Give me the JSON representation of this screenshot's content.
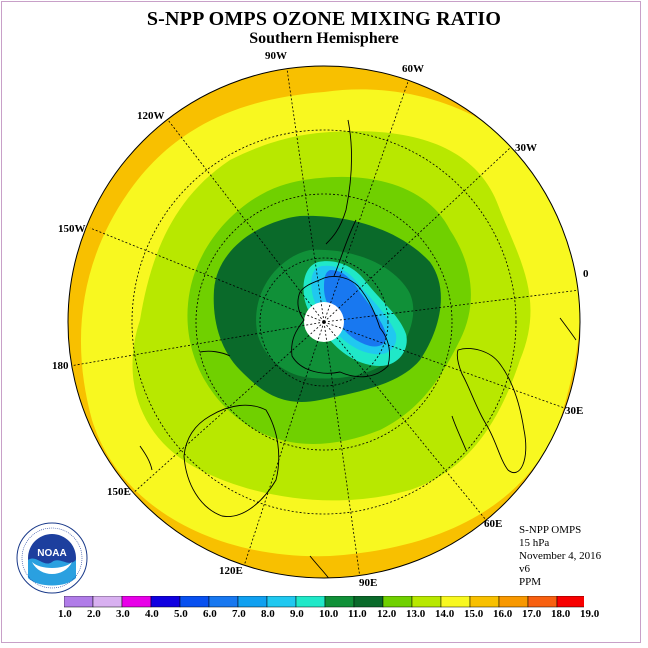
{
  "title": "S-NPP OMPS OZONE MIXING RATIO",
  "subtitle": "Southern Hemisphere",
  "longitude_labels": {
    "lon_90w": "90W",
    "lon_60w": "60W",
    "lon_30w": "30W",
    "lon_0": "0",
    "lon_30e": "30E",
    "lon_60e": "60E",
    "lon_90e": "90E",
    "lon_120e": "120E",
    "lon_150e": "150E",
    "lon_180": "180",
    "lon_150w": "150W",
    "lon_120w": "120W"
  },
  "info": {
    "instrument": "S-NPP OMPS",
    "level": "15 hPa",
    "date": "November 4, 2016",
    "version": "v6",
    "units": "PPM"
  },
  "colorbar": {
    "labels": [
      "1.0",
      "2.0",
      "3.0",
      "4.0",
      "5.0",
      "6.0",
      "7.0",
      "8.0",
      "9.0",
      "10.0",
      "11.0",
      "12.0",
      "13.0",
      "14.0",
      "15.0",
      "16.0",
      "17.0",
      "18.0",
      "19.0"
    ],
    "colors": [
      "#b07ce8",
      "#d8b0f0",
      "#e800e8",
      "#1000e0",
      "#0850f0",
      "#1878f0",
      "#10a0f0",
      "#20c8f0",
      "#20e8c8",
      "#109038",
      "#0a6a2a",
      "#70d000",
      "#b8e800",
      "#f8f820",
      "#f8c000",
      "#f89800",
      "#f86010",
      "#f80000",
      "#985030"
    ]
  },
  "logo_text": "NOAA"
}
